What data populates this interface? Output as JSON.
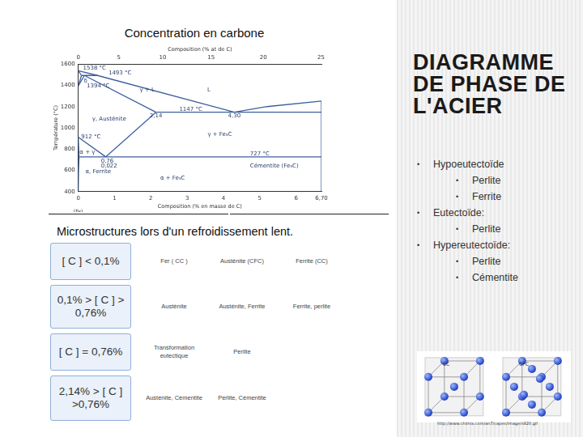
{
  "header": {
    "title": "Concentration en carbone"
  },
  "slide_title": "DIAGRAMME DE PHASE DE L'ACIER",
  "chart_data": {
    "type": "line",
    "color": "#3d5f9e",
    "y_label": "Température (°C)",
    "x_label": "Composition (% en masse de C)",
    "x2_label": "Composition (% at de C)",
    "xlim": [
      0,
      6.7
    ],
    "xticks": [
      0,
      1,
      2,
      3,
      4,
      5,
      6,
      {
        "value": 6.7,
        "label": "6,70"
      }
    ],
    "x2ticks": [
      {
        "value": 0,
        "label": "0"
      },
      {
        "value": 1.12,
        "label": "5"
      },
      {
        "value": 2.33,
        "label": "10"
      },
      {
        "value": 3.66,
        "label": "15"
      },
      {
        "value": 5.1,
        "label": "20"
      },
      {
        "value": 6.69,
        "label": "25"
      }
    ],
    "ylim": [
      400,
      1600
    ],
    "yticks": [
      400,
      600,
      800,
      1000,
      1200,
      1400,
      1600
    ],
    "grid": false,
    "x_note": {
      "text": "(Fe)",
      "x": 0
    },
    "series": [
      {
        "x": [
          0,
          0.53,
          4.3,
          5.2,
          6.7
        ],
        "values": [
          1538,
          1493,
          1147,
          1200,
          1252
        ]
      },
      {
        "x": [
          0,
          0.09
        ],
        "values": [
          1538,
          1493
        ]
      },
      {
        "x": [
          0.09,
          0.53
        ],
        "values": [
          1493,
          1493
        ]
      },
      {
        "x": [
          0,
          0.09
        ],
        "values": [
          1394,
          1493
        ]
      },
      {
        "x": [
          0,
          0.17
        ],
        "values": [
          1394,
          1493
        ]
      },
      {
        "x": [
          0.17,
          2.14
        ],
        "values": [
          1493,
          1147
        ]
      },
      {
        "x": [
          2.14,
          6.7
        ],
        "values": [
          1147,
          1147
        ]
      },
      {
        "x": [
          2.14,
          0.76
        ],
        "values": [
          1147,
          727
        ]
      },
      {
        "x": [
          0,
          0.76
        ],
        "values": [
          912,
          727
        ]
      },
      {
        "x": [
          0,
          0.022
        ],
        "values": [
          912,
          727
        ]
      },
      {
        "x": [
          0.022,
          6.7
        ],
        "values": [
          727,
          727
        ]
      },
      {
        "x": [
          0.022,
          0.008,
          0
        ],
        "values": [
          727,
          600,
          400
        ]
      },
      {
        "x": [
          6.7,
          6.7
        ],
        "values": [
          400,
          1252
        ]
      }
    ],
    "annotations": [
      {
        "text": "1538 °C",
        "x": 0.45,
        "y": 1562
      },
      {
        "text": "1493 °C",
        "x": 1.15,
        "y": 1515
      },
      {
        "text": "δ",
        "x": 0.2,
        "y": 1440
      },
      {
        "text": "1394 °C",
        "x": 0.55,
        "y": 1394
      },
      {
        "text": "γ + L",
        "x": 1.9,
        "y": 1360
      },
      {
        "text": "L",
        "x": 3.6,
        "y": 1360
      },
      {
        "text": "γ, Austénite",
        "x": 0.85,
        "y": 1080
      },
      {
        "text": "2,14",
        "x": 2.14,
        "y": 1110
      },
      {
        "text": "1147 °C",
        "x": 3.1,
        "y": 1172
      },
      {
        "text": "4,30",
        "x": 4.3,
        "y": 1110
      },
      {
        "text": "γ + Fe₃C",
        "x": 3.9,
        "y": 940
      },
      {
        "text": "912 °C",
        "x": 0.35,
        "y": 912
      },
      {
        "text": "α + γ",
        "x": 0.25,
        "y": 770
      },
      {
        "text": "727 °C",
        "x": 5.0,
        "y": 752
      },
      {
        "text": "0,76",
        "x": 0.8,
        "y": 688
      },
      {
        "text": "0,022",
        "x": 0.85,
        "y": 640
      },
      {
        "text": "α, Ferrite",
        "x": 0.55,
        "y": 585
      },
      {
        "text": "α + Fe₃C",
        "x": 2.6,
        "y": 530
      },
      {
        "text": "Cémentite (Fe₃C)",
        "x": 5.4,
        "y": 640
      }
    ]
  },
  "bullets": [
    {
      "text": "Hypoeutectoïde",
      "items": [
        "Perlite",
        "Ferrite"
      ]
    },
    {
      "text": "Eutectoïde:",
      "items": [
        "Perlite"
      ]
    },
    {
      "text": "Hypereutectoïde:",
      "items": [
        "Perlite",
        "Cémentite"
      ]
    }
  ],
  "table": {
    "title": "Microstructures lors d'un refroidissement lent.",
    "rows": [
      [
        "[ C ] < 0,1%",
        "Fer ( CC )",
        "Austénite (CFC)",
        "Ferrite (CC)"
      ],
      [
        "0,1% > [ C ] > 0,76%",
        "Austénite",
        "Austénite, Ferrite",
        "Ferrite, perlite"
      ],
      [
        "[ C ] = 0,76%",
        "Transformation eutectique",
        "Perlite"
      ],
      [
        "2,14% > [ C ] >0,76%",
        "Austénite, Cémentite",
        "Perlite, Cémentite"
      ]
    ]
  },
  "image": {
    "labels": [
      "CC",
      "CFC"
    ],
    "caption": "http://www.chimix.com/an7/capes/image/s920.gif"
  }
}
